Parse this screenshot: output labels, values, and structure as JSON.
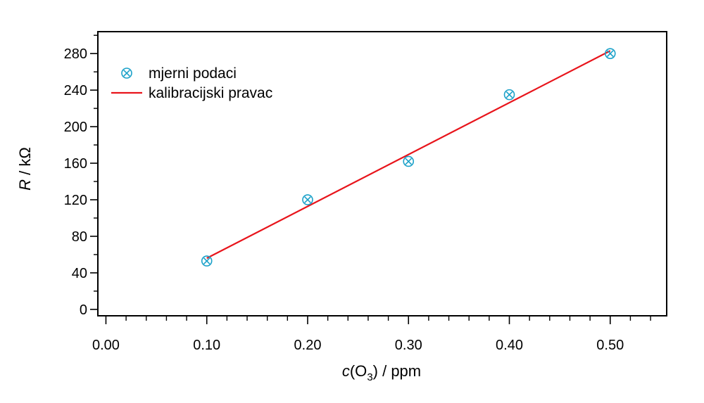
{
  "chart_data": {
    "type": "scatter",
    "x_ticks": [
      "0.00",
      "0.10",
      "0.20",
      "0.30",
      "0.40",
      "0.50"
    ],
    "y_ticks": [
      "0",
      "40",
      "80",
      "120",
      "160",
      "200",
      "240",
      "280"
    ],
    "xlim": [
      -0.008,
      0.556
    ],
    "ylim": [
      -7,
      304
    ],
    "xlabel": {
      "italic": "c",
      "open": "(O",
      "sub": "3",
      "close": ") / ppm"
    },
    "ylabel": {
      "italic": "R",
      "rest": " / kΩ"
    },
    "legend_position": "top-left",
    "series": [
      {
        "name": "mjerni podaci",
        "kind": "markers",
        "color": "#1ba1c9",
        "marker": "circle-x",
        "x": [
          0.1,
          0.2,
          0.3,
          0.4,
          0.5
        ],
        "y": [
          53,
          120,
          162,
          235,
          280
        ]
      },
      {
        "name": "kalibracijski pravac",
        "kind": "line",
        "color": "#e8141b",
        "x": [
          0.1,
          0.5
        ],
        "y": [
          56,
          283
        ]
      }
    ]
  }
}
